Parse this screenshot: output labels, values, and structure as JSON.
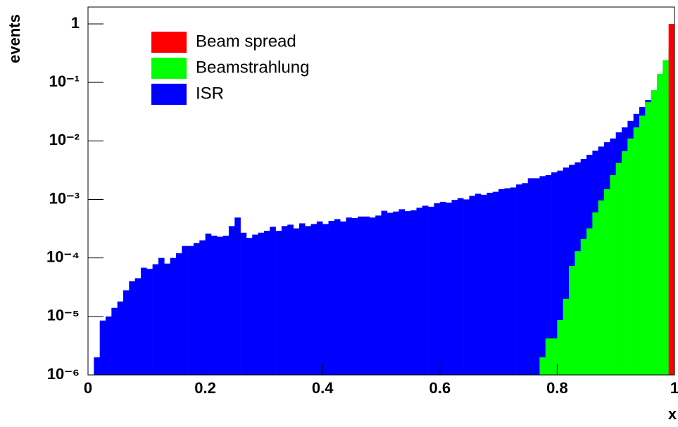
{
  "chart_data": {
    "type": "histogram",
    "x_label": "x",
    "y_label": "events",
    "log_y": true,
    "legend": "top-left",
    "xlim": [
      0,
      1
    ],
    "ylim": [
      1e-06,
      1.94
    ],
    "xticks": [
      0,
      0.2,
      0.4,
      0.6,
      0.8,
      1
    ],
    "yticks": [
      {
        "value": 1e-06,
        "label": "10⁻⁶"
      },
      {
        "value": 1e-05,
        "label": "10⁻⁵"
      },
      {
        "value": 0.0001,
        "label": "10⁻⁴"
      },
      {
        "value": 0.001,
        "label": "10⁻³"
      },
      {
        "value": 0.01,
        "label": "10⁻²"
      },
      {
        "value": 0.1,
        "label": "10⁻¹"
      },
      1
    ],
    "bins": [
      0,
      0.01,
      0.02,
      0.03,
      0.04,
      0.05,
      0.06,
      0.07,
      0.08,
      0.09,
      0.1,
      0.11,
      0.12,
      0.13,
      0.14,
      0.15,
      0.16,
      0.17,
      0.18,
      0.19,
      0.2,
      0.21,
      0.22,
      0.23,
      0.24,
      0.25,
      0.26,
      0.27,
      0.28,
      0.29,
      0.3,
      0.31,
      0.32,
      0.33,
      0.34,
      0.35,
      0.36,
      0.37,
      0.38,
      0.39,
      0.4,
      0.41,
      0.42,
      0.43,
      0.44,
      0.45,
      0.46,
      0.47,
      0.48,
      0.49,
      0.5,
      0.51,
      0.52,
      0.53,
      0.54,
      0.55,
      0.56,
      0.57,
      0.58,
      0.59,
      0.6,
      0.61,
      0.62,
      0.63,
      0.64,
      0.65,
      0.66,
      0.67,
      0.68,
      0.69,
      0.7,
      0.71,
      0.72,
      0.73,
      0.74,
      0.75,
      0.76,
      0.77,
      0.78,
      0.79,
      0.8,
      0.81,
      0.82,
      0.83,
      0.84,
      0.85,
      0.86,
      0.87,
      0.88,
      0.89,
      0.9,
      0.91,
      0.92,
      0.93,
      0.94,
      0.95,
      0.96,
      0.97,
      0.98,
      0.99,
      1
    ],
    "series": [
      {
        "name": "ISR",
        "color": "#0000ff",
        "values": [
          0,
          2e-06,
          8.5e-06,
          1e-05,
          1.4e-05,
          1.8e-05,
          2.8e-05,
          4e-05,
          4.5e-05,
          6.8e-05,
          6.5e-05,
          7.8e-05,
          0.0001,
          8e-05,
          0.0001,
          0.00012,
          0.00016,
          0.00016,
          0.00018,
          0.0002,
          0.00026,
          0.00024,
          0.00023,
          0.00024,
          0.00035,
          0.00049,
          0.00027,
          0.00022,
          0.00025,
          0.00027,
          0.00029,
          0.00034,
          0.00029,
          0.00035,
          0.00037,
          0.00032,
          0.00039,
          0.00035,
          0.00038,
          0.00042,
          0.00038,
          0.00043,
          0.00046,
          0.00042,
          0.00049,
          0.00048,
          0.00051,
          0.00051,
          0.00049,
          0.00053,
          0.00064,
          0.00059,
          0.00062,
          0.00068,
          0.00063,
          0.00065,
          0.00072,
          0.00078,
          0.00075,
          0.00086,
          0.00091,
          0.00088,
          0.00098,
          0.00105,
          0.001,
          0.00115,
          0.00125,
          0.0012,
          0.0013,
          0.00135,
          0.0015,
          0.00155,
          0.0016,
          0.0018,
          0.0019,
          0.0023,
          0.0023,
          0.0025,
          0.0026,
          0.0029,
          0.0031,
          0.0035,
          0.0039,
          0.0043,
          0.0049,
          0.0058,
          0.0068,
          0.008,
          0.0095,
          0.011,
          0.014,
          0.017,
          0.022,
          0.029,
          0.038,
          0.05,
          0.07,
          0.1,
          0.16,
          0.3
        ]
      },
      {
        "name": "Beamstrahlung",
        "color": "#00ff00",
        "values": [
          0,
          0,
          0,
          0,
          0,
          0,
          0,
          0,
          0,
          0,
          0,
          0,
          0,
          0,
          0,
          0,
          0,
          0,
          0,
          0,
          0,
          0,
          0,
          0,
          0,
          0,
          0,
          0,
          0,
          0,
          0,
          0,
          0,
          0,
          0,
          0,
          0,
          0,
          0,
          0,
          0,
          0,
          0,
          0,
          0,
          0,
          0,
          0,
          0,
          0,
          0,
          0,
          0,
          0,
          0,
          0,
          0,
          0,
          0,
          0,
          0,
          0,
          0,
          0,
          0,
          0,
          0,
          0,
          0,
          0,
          0,
          0,
          0,
          0,
          0,
          0,
          0,
          2e-06,
          4.2e-06,
          4.2e-06,
          8.7e-06,
          2e-05,
          7.3e-05,
          0.00013,
          0.00021,
          0.00032,
          0.0006,
          0.00096,
          0.0015,
          0.0026,
          0.0042,
          0.0067,
          0.011,
          0.017,
          0.027,
          0.046,
          0.074,
          0.14,
          0.24,
          0.4
        ]
      },
      {
        "name": "Beam spread",
        "color": "#ff0000",
        "values": [
          0,
          0,
          0,
          0,
          0,
          0,
          0,
          0,
          0,
          0,
          0,
          0,
          0,
          0,
          0,
          0,
          0,
          0,
          0,
          0,
          0,
          0,
          0,
          0,
          0,
          0,
          0,
          0,
          0,
          0,
          0,
          0,
          0,
          0,
          0,
          0,
          0,
          0,
          0,
          0,
          0,
          0,
          0,
          0,
          0,
          0,
          0,
          0,
          0,
          0,
          0,
          0,
          0,
          0,
          0,
          0,
          0,
          0,
          0,
          0,
          0,
          0,
          0,
          0,
          0,
          0,
          0,
          0,
          0,
          0,
          0,
          0,
          0,
          0,
          0,
          0,
          0,
          0,
          0,
          0,
          0,
          0,
          0,
          0,
          0,
          0,
          0,
          0,
          0,
          0,
          0,
          0,
          0,
          0,
          0,
          0,
          0,
          0,
          0,
          1
        ]
      }
    ]
  }
}
